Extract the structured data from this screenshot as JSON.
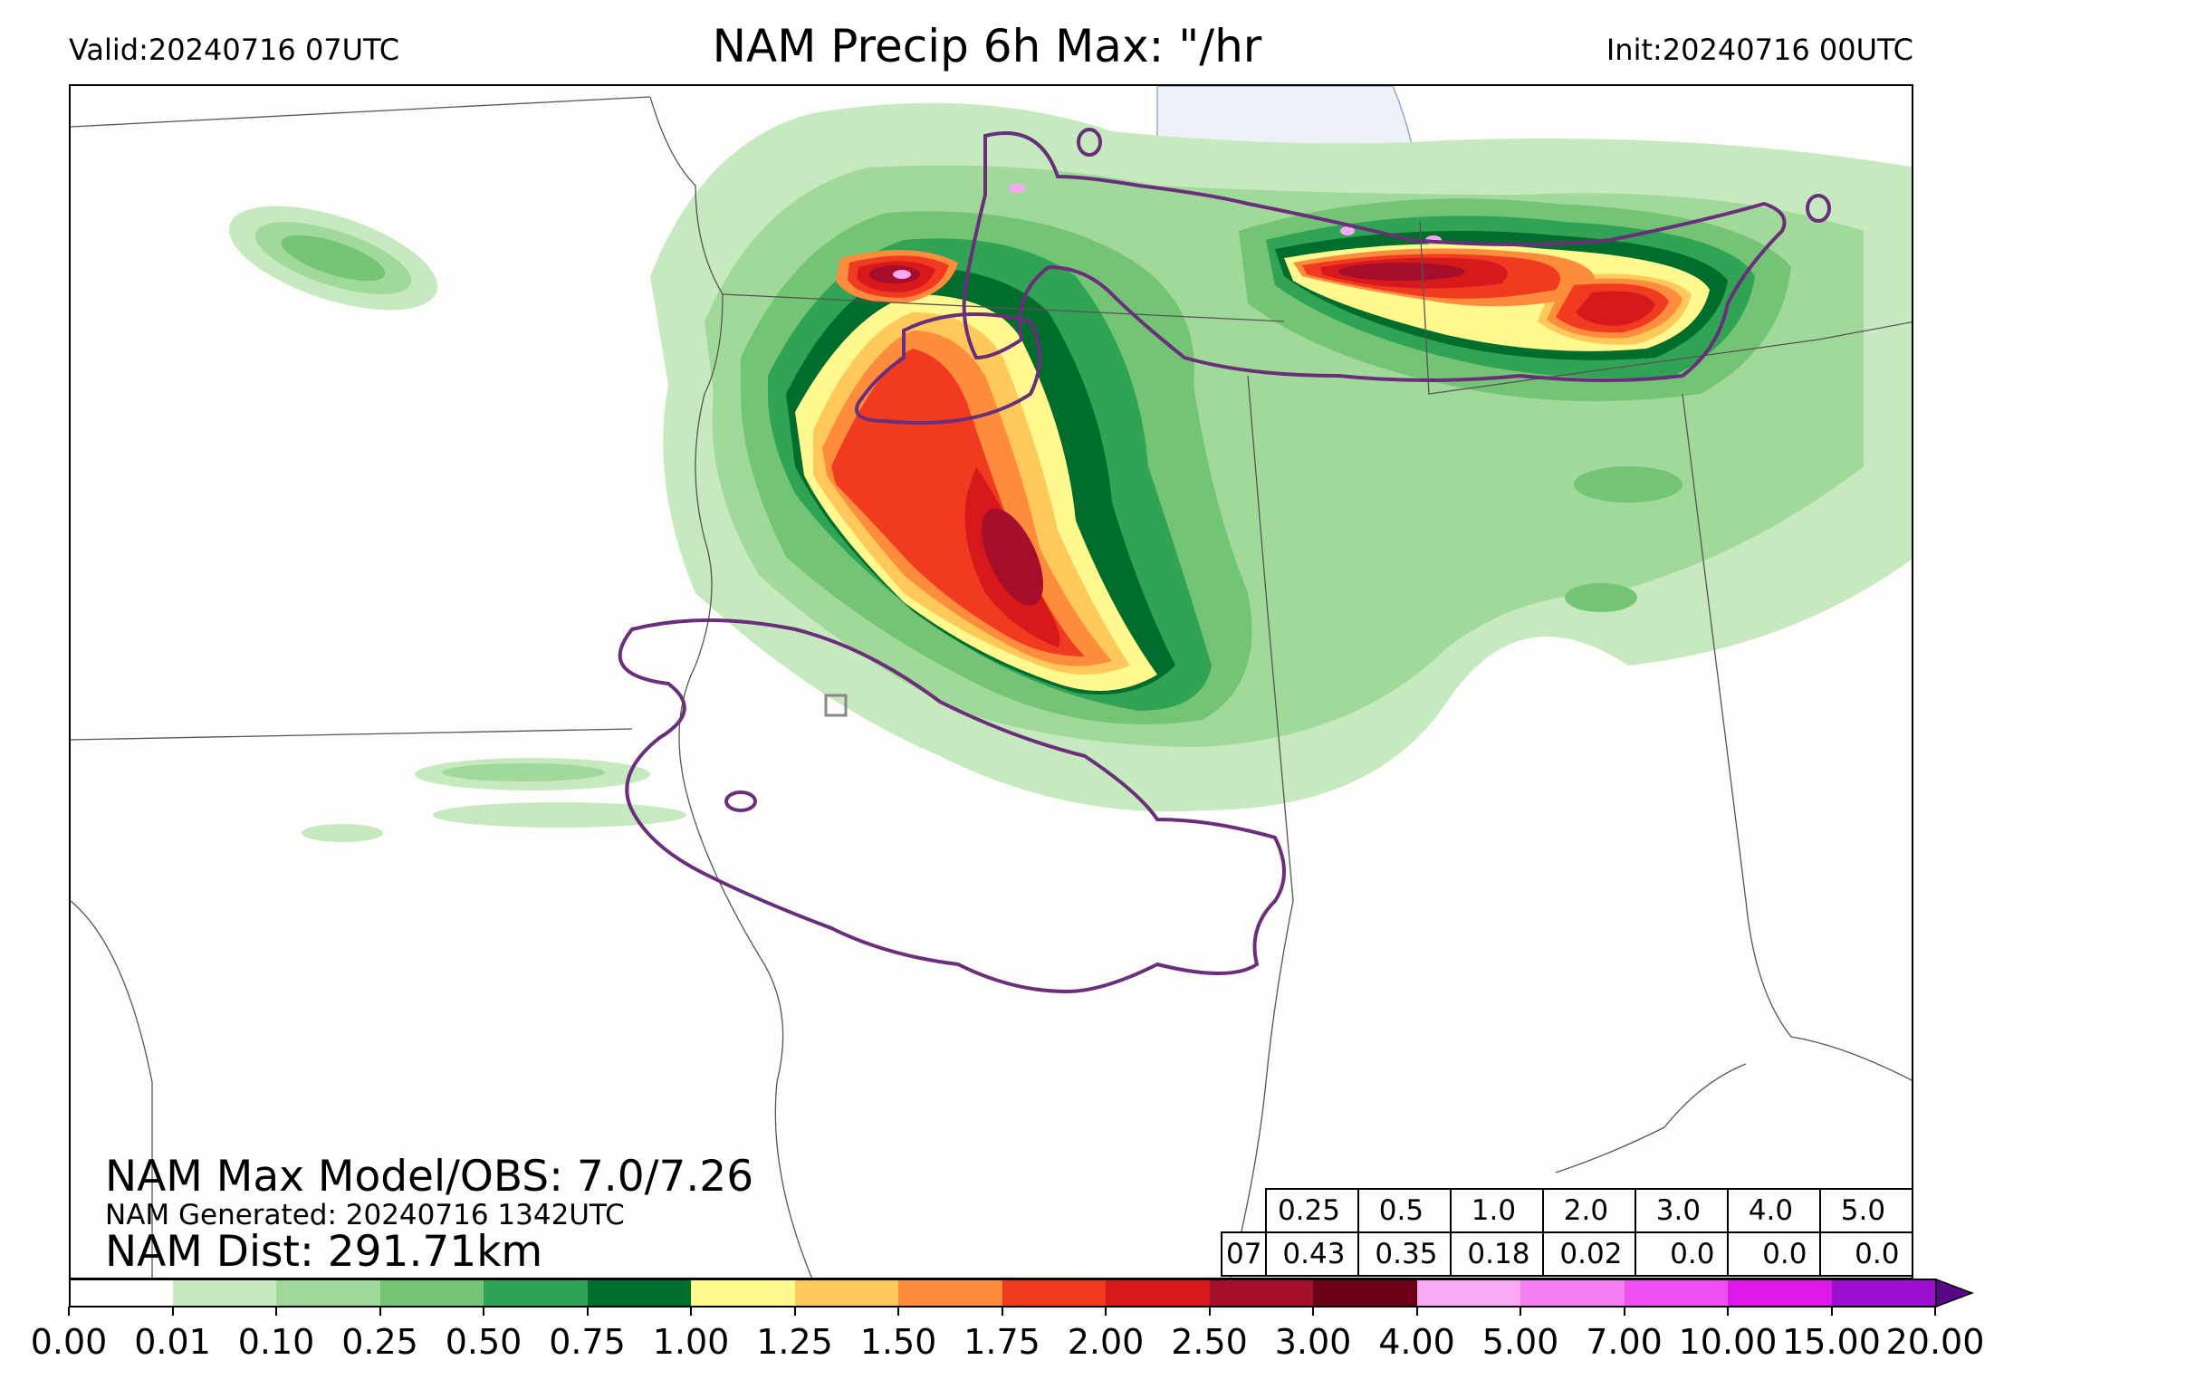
{
  "header": {
    "valid": "Valid:20240716 07UTC",
    "title": "NAM Precip 6h Max: \"/hr",
    "init": "Init:20240716 00UTC"
  },
  "stats": {
    "max_model_obs": "NAM Max Model/OBS: 7.0/7.26",
    "generated": "NAM Generated: 20240716 1342UTC",
    "distance": "NAM Dist: 291.71km"
  },
  "threshold_table": {
    "thresholds": [
      "0.25",
      "0.5",
      "1.0",
      "2.0",
      "3.0",
      "4.0",
      "5.0"
    ],
    "row_label": "07",
    "values": [
      "0.43",
      "0.35",
      "0.18",
      "0.02",
      "0.0",
      "0.0",
      "0.0"
    ]
  },
  "colorbar": {
    "ticks": [
      "0.00",
      "0.01",
      "0.10",
      "0.25",
      "0.50",
      "0.75",
      "1.00",
      "1.25",
      "1.50",
      "1.75",
      "2.00",
      "2.50",
      "3.00",
      "4.00",
      "5.00",
      "7.00",
      "10.00",
      "15.00",
      "20.00"
    ],
    "colors": [
      "#fdfdfc",
      "#c7e9c0",
      "#a1d99b",
      "#74c476",
      "#31a354",
      "#006d2c",
      "#fff98f",
      "#fec95a",
      "#fd8d3c",
      "#f03b20",
      "#d7191c",
      "#a50f2b",
      "#6d0019",
      "#f9a8f4",
      "#f37ff0",
      "#ef4ff0",
      "#dd18e8",
      "#9a0fd0"
    ],
    "extend_color": "#5a0787"
  }
}
